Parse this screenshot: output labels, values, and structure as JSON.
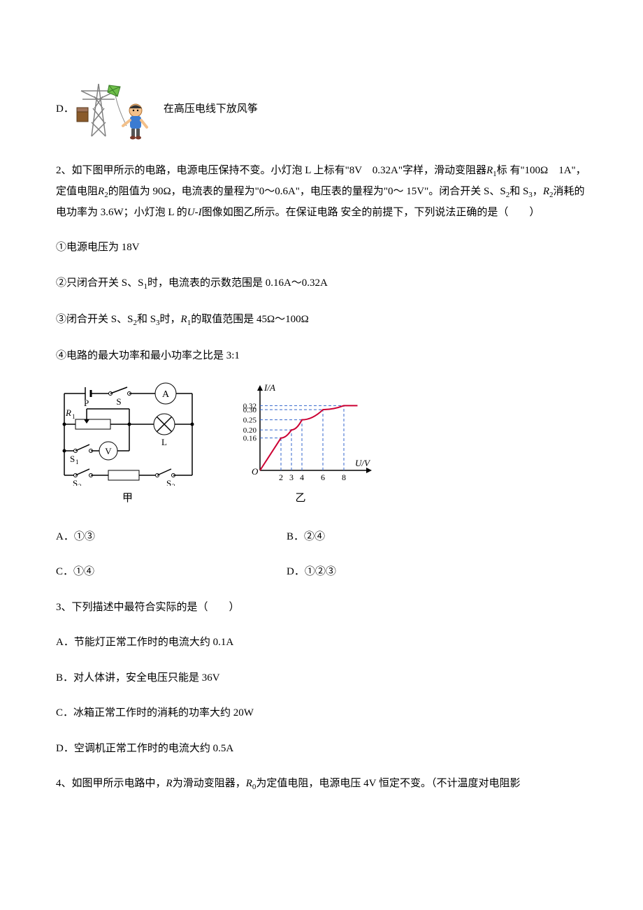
{
  "optD": {
    "prefix": "D．",
    "text": "在高压电线下放风筝"
  },
  "q2": {
    "stem_l1": "2、如下图甲所示的电路，电源电压保持不变。小灯泡 L 上标有\"8V　0.32A\"字样，滑动变阻器",
    "stem_r1_italic": "R",
    "stem_r1_sub": "1",
    "stem_r1_tail": "标",
    "stem_l2_a": "有\"100Ω　1A\"，定值电阻",
    "stem_l2_b_italic": "R",
    "stem_l2_b_sub": "2",
    "stem_l2_c": "的阻值为 90Ω，电流表的量程为\"0～0.6A\"，电压表的量程为\"0～",
    "stem_l3_a": "15V\"。闭合开关 S、S",
    "stem_l3_sub2": "2",
    "stem_l3_b": "和 S",
    "stem_l3_sub3": "3",
    "stem_l3_c": "，",
    "stem_l3_r2_italic": "R",
    "stem_l3_r2_sub": "2",
    "stem_l3_d": "消耗的电功率为 3.6W；小灯泡 L 的",
    "stem_l3_u_italic": "U",
    "stem_l3_dash": "-",
    "stem_l3_i_italic": "I",
    "stem_l3_e": "图像如图乙所示。在保证电路",
    "stem_l4": "安全的前提下，下列说法正确的是（　　）",
    "s1": "①电源电压为 18V",
    "s2_a": "②只闭合开关 S、S",
    "s2_sub": "1",
    "s2_b": "时，电流表的示数范围是 0.16A～0.32A",
    "s3_a": "③闭合开关 S、S",
    "s3_sub2": "2",
    "s3_b": "和 S",
    "s3_sub3": "3",
    "s3_c": "时，",
    "s3_r_italic": "R",
    "s3_r_sub": "1",
    "s3_d": "的取值范围是 45Ω～100Ω",
    "s4": "④电路的最大功率和最小功率之比是 3:1",
    "fig1_label": "甲",
    "fig2_label": "乙",
    "optA": "A．①③",
    "optB": "B．②④",
    "optC": "C．①④",
    "optD": "D．①②③"
  },
  "q3": {
    "stem": "3、下列描述中最符合实际的是（　　）",
    "optA": "A．节能灯正常工作时的电流大约 0.1A",
    "optB": "B．对人体讲，安全电压只能是 36V",
    "optC": "C．冰箱正常工作时的消耗的功率大约 20W",
    "optD": "D．空调机正常工作时的电流大约 0.5A"
  },
  "q4": {
    "stem_a": "4、如图甲所示电路中，",
    "stem_r_italic": "R",
    "stem_b": "为滑动变阻器，",
    "stem_r0_italic": "R",
    "stem_r0_sub": "0",
    "stem_c": "为定值电阻，电源电压 4V 恒定不变。（不计温度对电阻影"
  },
  "circuit": {
    "bg": "#ffffff",
    "stroke": "#000000",
    "labels": {
      "S": "S",
      "A": "A",
      "R1": "R",
      "R1sub": "1",
      "P": "P",
      "L": "L",
      "V": "V",
      "S1": "S",
      "S1sub": "1",
      "S2": "S",
      "S2sub": "2",
      "R2": "R",
      "R2sub": "2",
      "S3": "S",
      "S3sub": "3"
    }
  },
  "chart": {
    "bg": "#ffffff",
    "axis_color": "#000000",
    "curve_color": "#cc0033",
    "dash_color": "#3366cc",
    "y_label": "I/A",
    "x_label": "U/V",
    "y_ticks": [
      "0.32",
      "0.30",
      "0.25",
      "0.20",
      "0.16"
    ],
    "y_vals": [
      0.32,
      0.3,
      0.25,
      0.2,
      0.16
    ],
    "x_ticks": [
      "2",
      "3",
      "4",
      "6",
      "8"
    ],
    "x_vals": [
      2,
      3,
      4,
      6,
      8
    ],
    "origin_label": "O",
    "xlim": [
      0,
      10
    ],
    "ylim": [
      0,
      0.38
    ],
    "points": [
      [
        2,
        0.16
      ],
      [
        3,
        0.2
      ],
      [
        4,
        0.25
      ],
      [
        6,
        0.3
      ],
      [
        8,
        0.32
      ]
    ]
  },
  "tower_icon": {
    "tower_color": "#808080",
    "box_color": "#8a5a2a",
    "person_skin": "#f3c08a",
    "person_shirt": "#3b7bd1",
    "person_pants": "#555",
    "kite_color": "#6fbf4a"
  }
}
